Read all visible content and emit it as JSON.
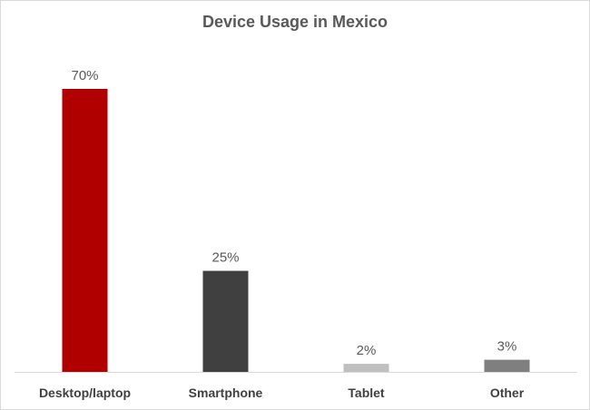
{
  "chart_data": {
    "type": "bar",
    "title": "Device Usage in Mexico",
    "xlabel": "",
    "ylabel": "",
    "categories": [
      "Desktop/laptop",
      "Smartphone",
      "Tablet",
      "Other"
    ],
    "values": [
      70,
      25,
      2,
      3
    ],
    "value_labels": [
      "70%",
      "25%",
      "2%",
      "3%"
    ],
    "colors": [
      "#b00000",
      "#404040",
      "#bfbfbf",
      "#7f7f7f"
    ],
    "ylim": [
      0,
      70
    ],
    "grid": false,
    "legend": "none"
  }
}
